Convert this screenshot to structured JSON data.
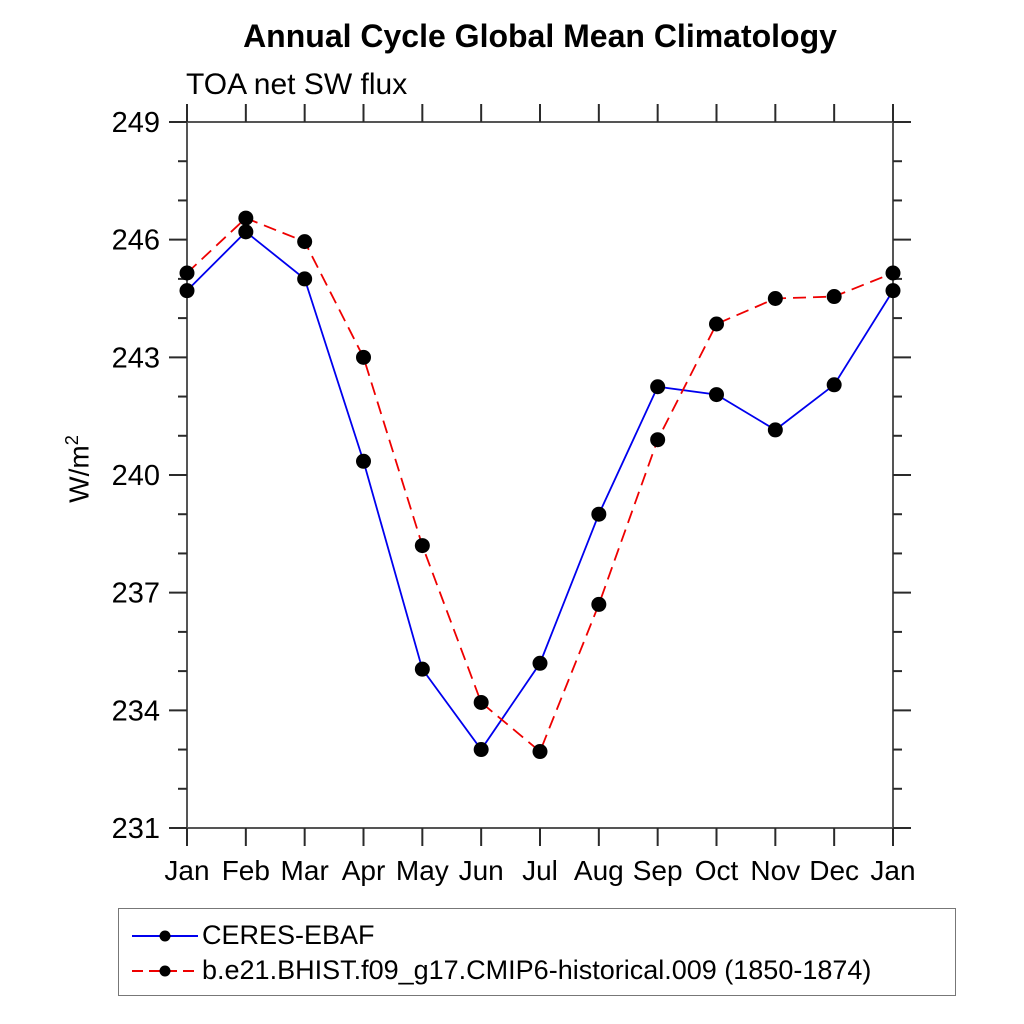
{
  "title": "Annual Cycle Global Mean Climatology",
  "subtitle": "TOA net SW flux",
  "ylabel_base": "W/m",
  "ylabel_exp": "2",
  "colors": {
    "axis_box": "#555555",
    "tick": "#2a2a2a",
    "marker": "#000000",
    "ceres_blue": "#0000ee",
    "model_red": "#ee0000"
  },
  "chart_data": {
    "type": "line",
    "title": "Annual Cycle Global Mean Climatology",
    "subtitle": "TOA net SW flux",
    "ylabel": "W/m2",
    "xlabel": "",
    "categories": [
      "Jan",
      "Feb",
      "Mar",
      "Apr",
      "May",
      "Jun",
      "Jul",
      "Aug",
      "Sep",
      "Oct",
      "Nov",
      "Dec",
      "Jan"
    ],
    "ylim": [
      231,
      249
    ],
    "ytick_major_step": 3,
    "ytick_minor_step": 1,
    "ytick_labels": [
      "231",
      "234",
      "237",
      "240",
      "243",
      "246",
      "249"
    ],
    "grid": false,
    "marker": "filled-black-circle",
    "legend_position": "below-plot-boxed",
    "series": [
      {
        "name": "CERES-EBAF",
        "color": "#0000ee",
        "line_style": "solid",
        "values": [
          244.7,
          246.2,
          245.0,
          240.35,
          235.05,
          233.0,
          235.2,
          239.0,
          242.25,
          242.05,
          241.15,
          242.3,
          244.7
        ]
      },
      {
        "name": "b.e21.BHIST.f09_g17.CMIP6-historical.009 (1850-1874)",
        "color": "#ee0000",
        "line_style": "dashed",
        "values": [
          245.15,
          246.55,
          245.95,
          243.0,
          238.2,
          234.2,
          232.95,
          236.7,
          240.9,
          243.85,
          244.5,
          244.55,
          245.15
        ]
      }
    ]
  }
}
